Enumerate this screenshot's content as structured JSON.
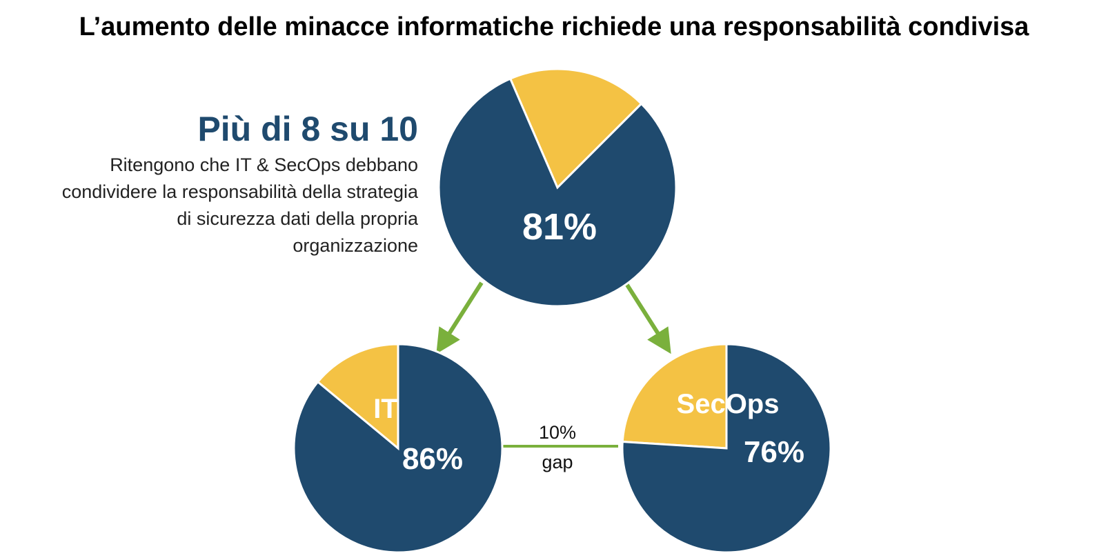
{
  "title": "L’aumento delle minacce informatiche richiede una responsabilità condivisa",
  "callout": {
    "headline": "Più di 8 su 10",
    "description": "Ritengono che  IT & SecOps debbano condividere la responsabilità della strategia di sicurezza dati della propria organizzazione"
  },
  "colors": {
    "primary": "#1f4a6e",
    "secondary": "#f4c244",
    "arrow": "#7ab03c"
  },
  "gap": {
    "line1": "10%",
    "line2": "gap"
  },
  "chart_data": [
    {
      "type": "pie",
      "title": "",
      "slices": [
        {
          "label": "",
          "value": 81,
          "color": "#1f4a6e"
        },
        {
          "label": "",
          "value": 19,
          "color": "#f4c244"
        }
      ],
      "value_label": "81%"
    },
    {
      "type": "pie",
      "title": "IT",
      "slices": [
        {
          "label": "",
          "value": 86,
          "color": "#1f4a6e"
        },
        {
          "label": "",
          "value": 14,
          "color": "#f4c244"
        }
      ],
      "value_label": "86%"
    },
    {
      "type": "pie",
      "title": "SecOps",
      "slices": [
        {
          "label": "",
          "value": 76,
          "color": "#1f4a6e"
        },
        {
          "label": "",
          "value": 24,
          "color": "#f4c244"
        }
      ],
      "value_label": "76%"
    }
  ]
}
